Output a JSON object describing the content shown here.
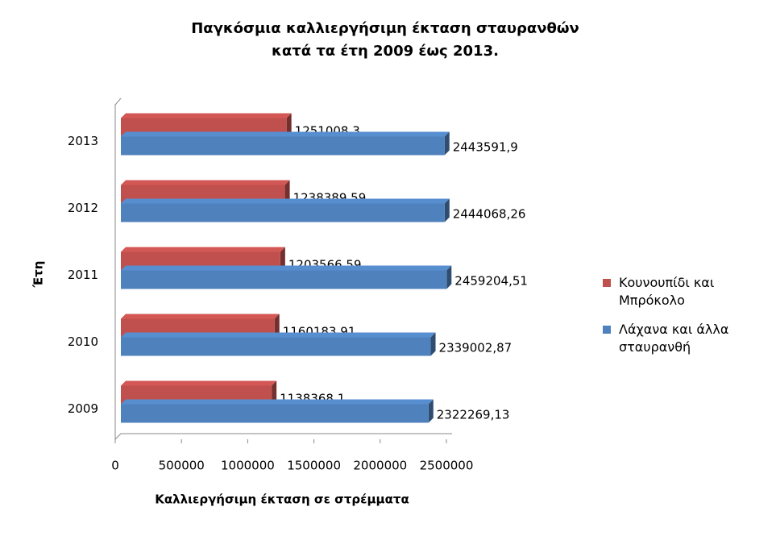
{
  "chart_data": {
    "type": "bar",
    "orientation": "horizontal",
    "title": [
      "Παγκόσμια καλλιεργήσιμη έκταση σταυρανθών",
      "κατά τα έτη 2009 έως 2013."
    ],
    "x_label": "Καλλιεργήσιμη έκταση σε στρέμματα",
    "y_label": "Έτη",
    "categories": [
      "2009",
      "2010",
      "2011",
      "2012",
      "2013"
    ],
    "series": [
      {
        "name": "Κουνουπίδι και Μπρόκολο",
        "color": "#c0504d",
        "values": [
          1138368.1,
          1160183.91,
          1203566.59,
          1238389.59,
          1251008.3
        ],
        "value_labels": [
          "1138368,1",
          "1160183,91",
          "1203566,59",
          "1238389,59",
          "1251008,3"
        ]
      },
      {
        "name": "Λάχανα και άλλα σταυρανθή",
        "color": "#4f81bd",
        "values": [
          2322269.13,
          2339002.87,
          2459204.51,
          2444068.26,
          2443591.9
        ],
        "value_labels": [
          "2322269,13",
          "2339002,87",
          "2459204,51",
          "2444068,26",
          "2443591,9"
        ]
      }
    ],
    "xlim": [
      0,
      2500000
    ],
    "xticks": [
      0,
      500000,
      1000000,
      1500000,
      2000000,
      2500000
    ],
    "legend": "right"
  }
}
